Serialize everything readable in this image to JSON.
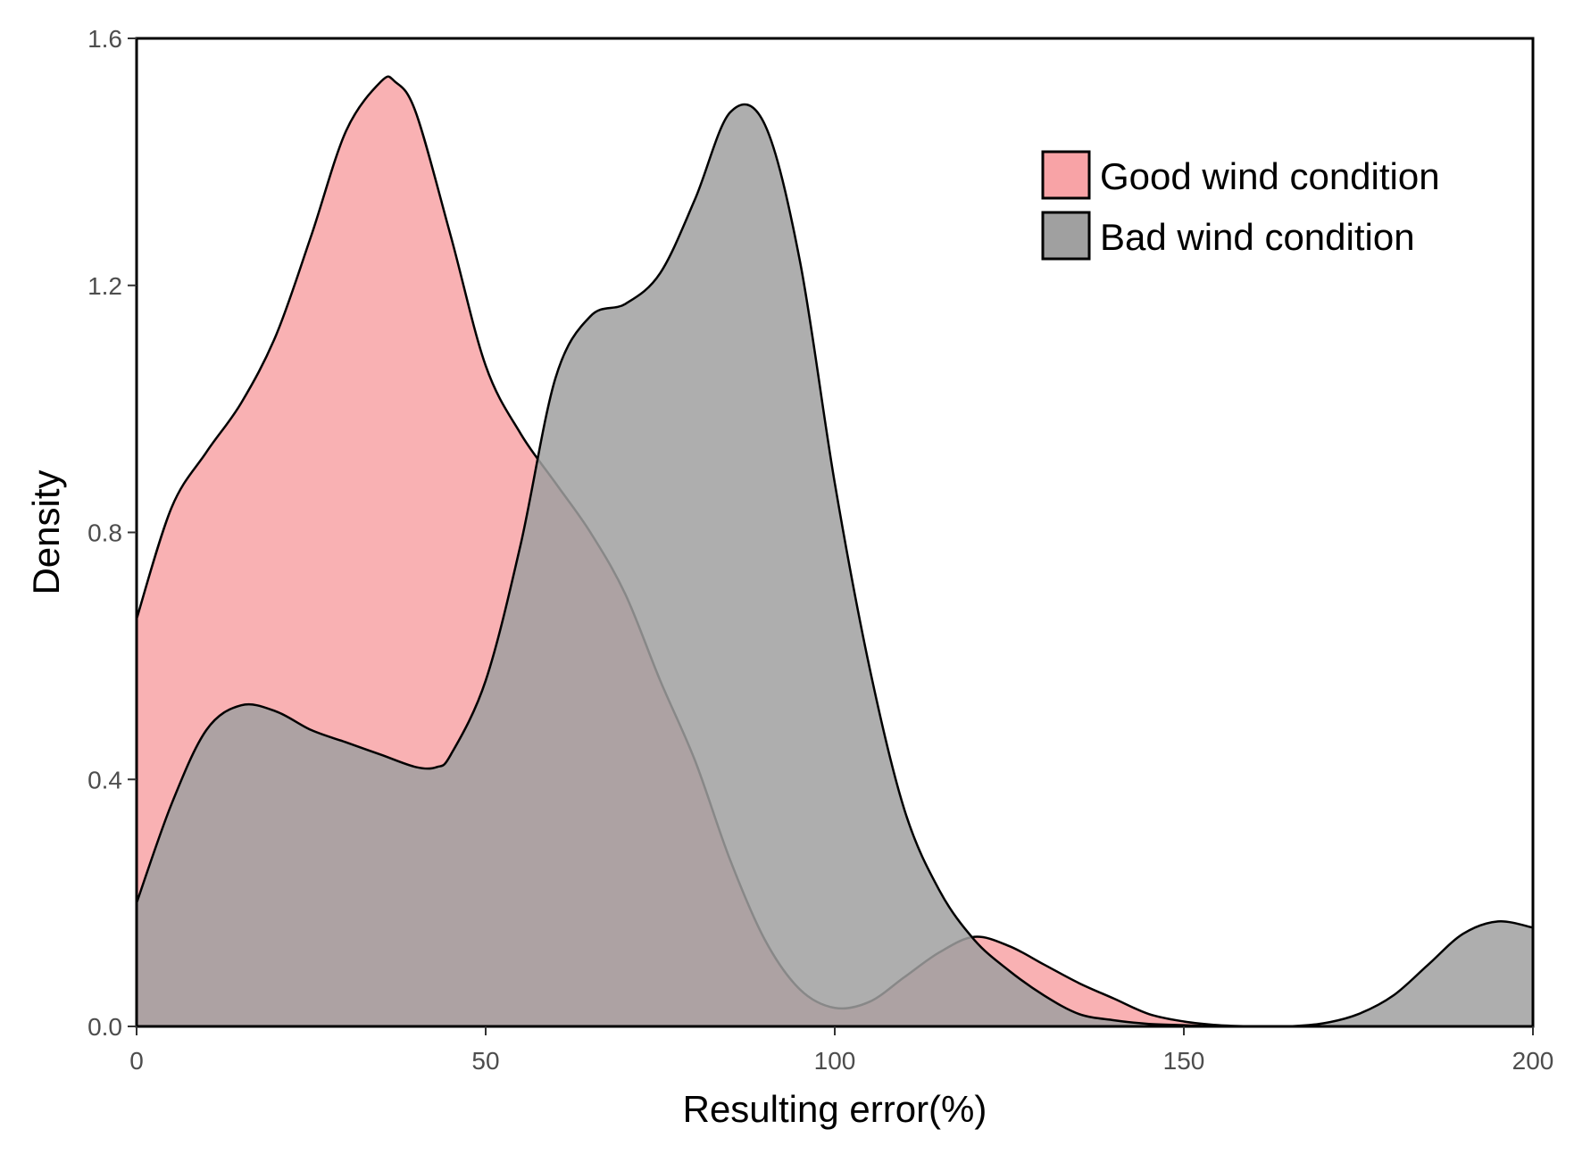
{
  "chart_data": {
    "type": "area",
    "subtype": "density",
    "title": "",
    "xlabel": "Resulting error(%)",
    "ylabel": "Density",
    "xlim": [
      0,
      200
    ],
    "ylim": [
      0,
      1.6
    ],
    "x_ticks": [
      0,
      50,
      100,
      150,
      200
    ],
    "y_ticks": [
      0.0,
      0.4,
      0.8,
      1.2,
      1.6
    ],
    "x_tick_labels": [
      "0",
      "50",
      "100",
      "150",
      "200"
    ],
    "y_tick_labels": [
      "0.0",
      "0.4",
      "0.8",
      "1.2",
      "1.6"
    ],
    "grid": false,
    "legend_position": "top-right",
    "series": [
      {
        "name": "Good wind condition",
        "color": "#f8a3a6",
        "x": [
          0,
          5,
          10,
          15,
          20,
          25,
          30,
          35,
          37,
          40,
          45,
          50,
          55,
          60,
          65,
          70,
          75,
          80,
          85,
          90,
          95,
          100,
          105,
          110,
          115,
          120,
          125,
          130,
          135,
          140,
          145,
          150,
          155,
          160,
          165,
          170,
          175,
          180,
          185,
          190,
          195,
          200
        ],
        "values": [
          0.66,
          0.84,
          0.93,
          1.01,
          1.12,
          1.28,
          1.45,
          1.53,
          1.53,
          1.48,
          1.28,
          1.07,
          0.96,
          0.88,
          0.8,
          0.7,
          0.56,
          0.43,
          0.27,
          0.14,
          0.06,
          0.03,
          0.04,
          0.08,
          0.12,
          0.145,
          0.13,
          0.1,
          0.07,
          0.045,
          0.02,
          0.008,
          0.002,
          0,
          0,
          0,
          0,
          0,
          0,
          0,
          0,
          0
        ]
      },
      {
        "name": "Bad wind condition",
        "color": "#a0a0a0",
        "x": [
          0,
          5,
          10,
          15,
          20,
          25,
          30,
          35,
          40,
          43,
          45,
          50,
          55,
          60,
          65,
          70,
          75,
          80,
          85,
          90,
          95,
          100,
          105,
          110,
          115,
          120,
          125,
          130,
          135,
          140,
          145,
          150,
          155,
          160,
          165,
          170,
          175,
          180,
          185,
          190,
          195,
          200
        ],
        "values": [
          0.2,
          0.36,
          0.48,
          0.52,
          0.51,
          0.48,
          0.46,
          0.44,
          0.42,
          0.42,
          0.44,
          0.56,
          0.78,
          1.05,
          1.15,
          1.17,
          1.22,
          1.34,
          1.48,
          1.46,
          1.24,
          0.88,
          0.58,
          0.35,
          0.22,
          0.14,
          0.09,
          0.05,
          0.02,
          0.01,
          0.004,
          0.002,
          0,
          0,
          0,
          0.005,
          0.02,
          0.05,
          0.1,
          0.15,
          0.17,
          0.16
        ]
      }
    ]
  }
}
